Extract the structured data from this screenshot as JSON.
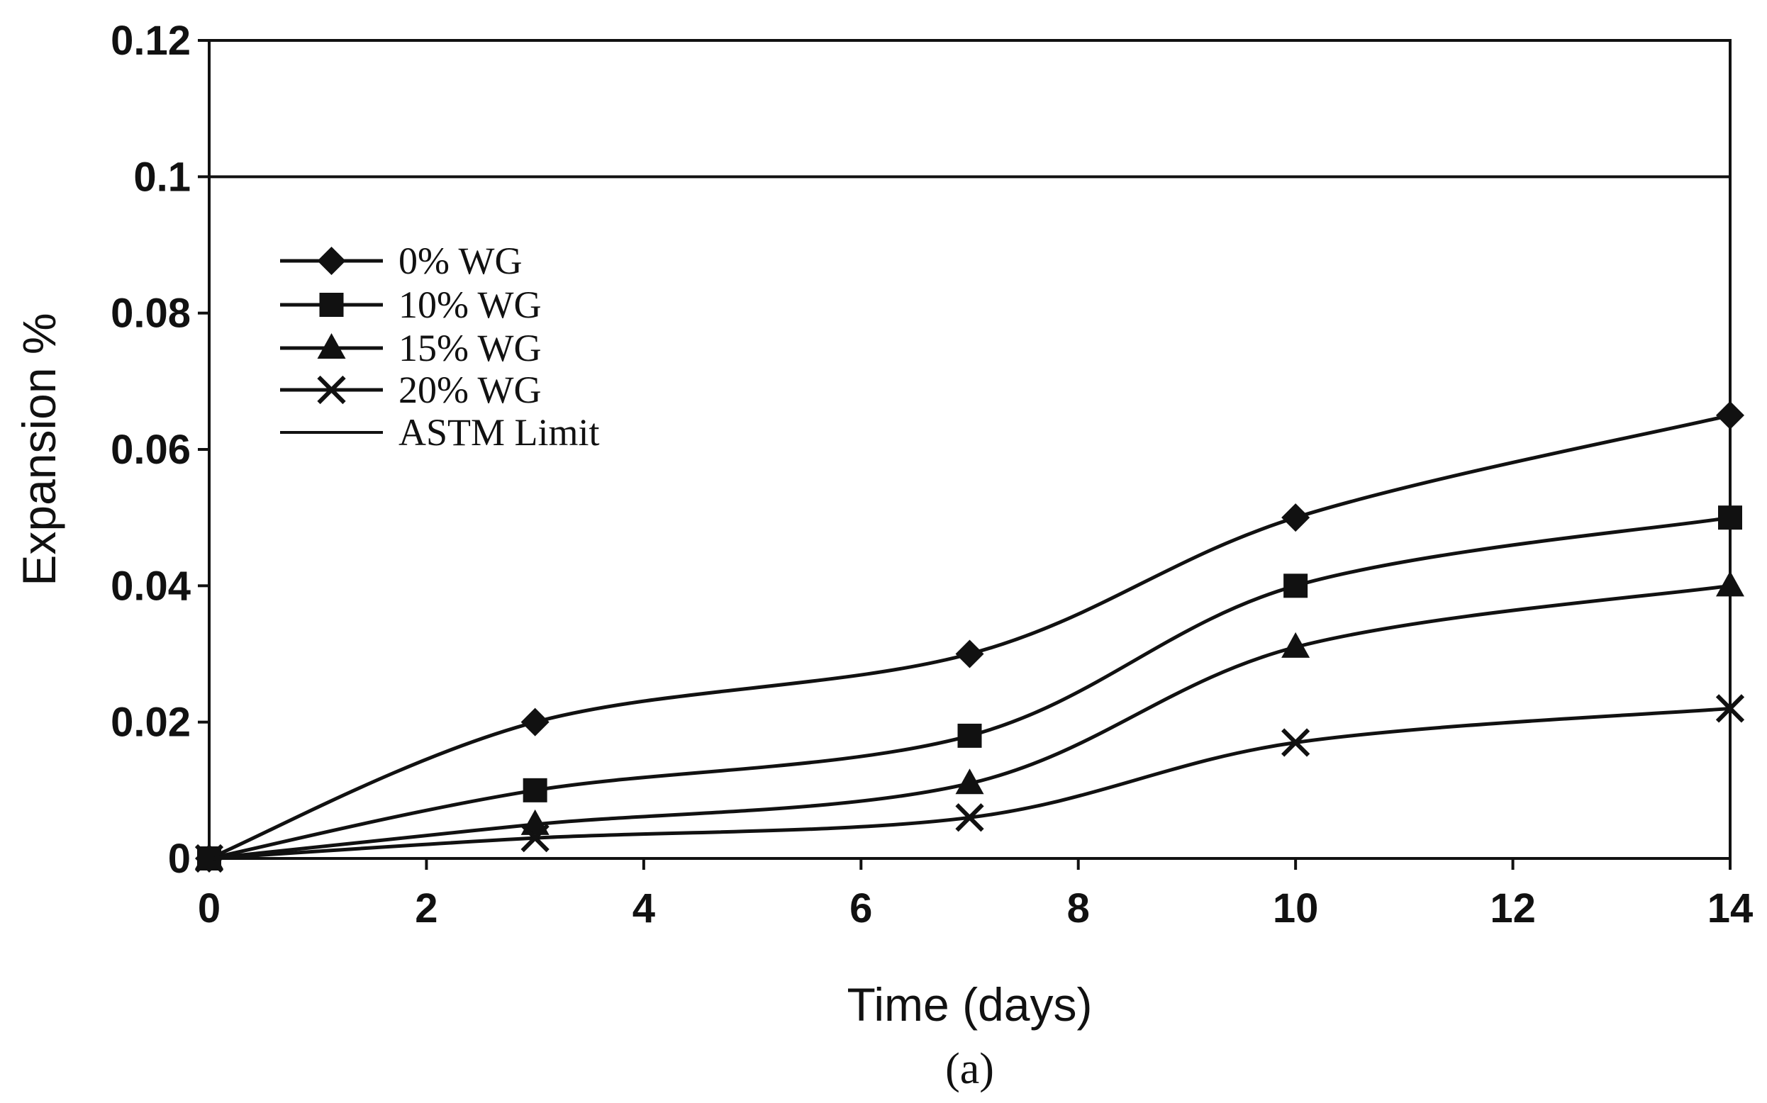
{
  "chart_data": {
    "type": "line",
    "title": "",
    "caption": "(a)",
    "xlabel": "Time (days)",
    "ylabel": "Expansion %",
    "xlim": [
      0,
      14
    ],
    "ylim": [
      0,
      0.12
    ],
    "xticks": [
      0,
      2,
      4,
      6,
      8,
      10,
      12,
      14
    ],
    "xtick_labels": [
      "0",
      "2",
      "4",
      "6",
      "8",
      "10",
      "12",
      "14"
    ],
    "yticks": [
      0,
      0.02,
      0.04,
      0.06,
      0.08,
      0.1,
      0.12
    ],
    "ytick_labels": [
      "0",
      "0.02",
      "0.04",
      "0.06",
      "0.08",
      "0.1",
      "0.12"
    ],
    "grid": false,
    "legend_position": "middle-left",
    "series": [
      {
        "name": "0% WG",
        "marker": "diamond",
        "x": [
          0,
          3,
          7,
          10,
          14
        ],
        "y": [
          0,
          0.02,
          0.03,
          0.05,
          0.065
        ]
      },
      {
        "name": "10% WG",
        "marker": "square",
        "x": [
          0,
          3,
          7,
          10,
          14
        ],
        "y": [
          0,
          0.01,
          0.018,
          0.04,
          0.05
        ]
      },
      {
        "name": "15% WG",
        "marker": "triangle",
        "x": [
          0,
          3,
          7,
          10,
          14
        ],
        "y": [
          0,
          0.005,
          0.011,
          0.031,
          0.04
        ]
      },
      {
        "name": "20% WG",
        "marker": "x",
        "x": [
          0,
          3,
          7,
          10,
          14
        ],
        "y": [
          0,
          0.003,
          0.006,
          0.017,
          0.022
        ]
      }
    ],
    "reference_lines": [
      {
        "name": "ASTM Limit",
        "y": 0.1
      }
    ]
  }
}
